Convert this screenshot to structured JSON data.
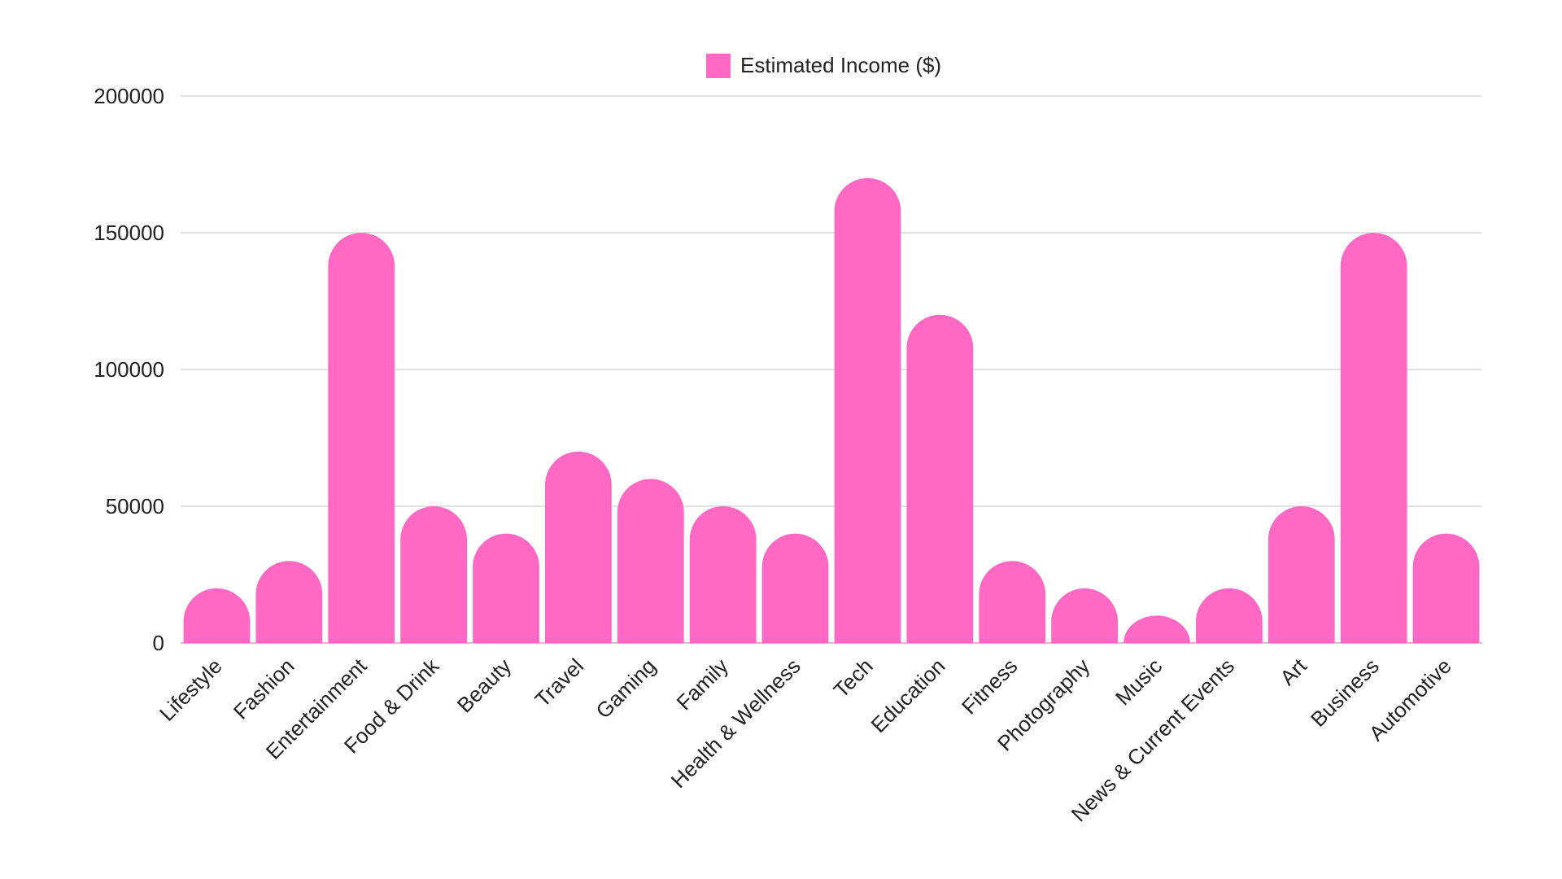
{
  "chart_data": {
    "type": "bar",
    "title": "",
    "xlabel": "",
    "ylabel": "",
    "ylim": [
      0,
      200000
    ],
    "yticks": [
      0,
      50000,
      100000,
      150000,
      200000
    ],
    "ytick_labels": [
      "0",
      "50000",
      "100000",
      "150000",
      "200000"
    ],
    "grid": true,
    "legend_position": "top-center",
    "bar_color": "#ff69c3",
    "categories": [
      "Lifestyle",
      "Fashion",
      "Entertainment",
      "Food & Drink",
      "Beauty",
      "Travel",
      "Gaming",
      "Family",
      "Health & Wellness",
      "Tech",
      "Education",
      "Fitness",
      "Photography",
      "Music",
      "News & Current Events",
      "Art",
      "Business",
      "Automotive"
    ],
    "series": [
      {
        "name": "Estimated Income ($)",
        "values": [
          20000,
          30000,
          150000,
          50000,
          40000,
          70000,
          60000,
          50000,
          40000,
          170000,
          120000,
          30000,
          20000,
          10000,
          20000,
          50000,
          150000,
          40000
        ]
      }
    ]
  }
}
